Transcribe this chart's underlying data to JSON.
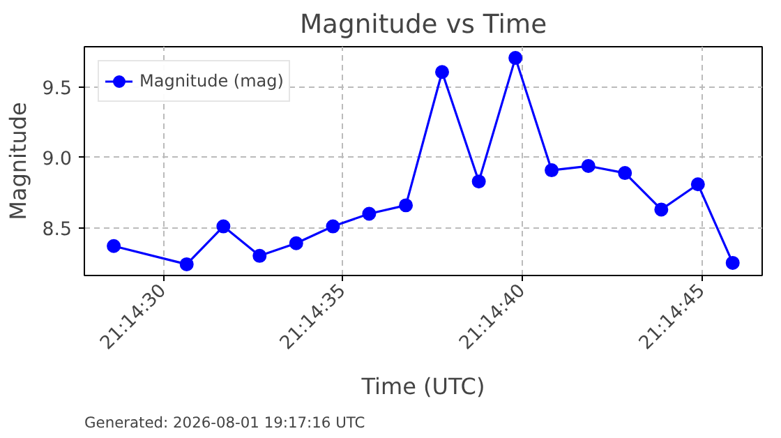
{
  "chart_data": {
    "type": "line",
    "title": "Magnitude vs Time",
    "xlabel": "Time (UTC)",
    "ylabel": "Magnitude",
    "x": [
      21.241283,
      21.241847,
      21.242131,
      21.242411,
      21.242694,
      21.242978,
      21.243258,
      21.243542,
      21.243822,
      21.244106,
      21.244389,
      21.244669,
      21.244953,
      21.245236,
      21.245517,
      21.2458,
      21.246069
    ],
    "series": [
      {
        "name": "Magnitude (mag)",
        "color": "#0000ff",
        "values": [
          8.37,
          8.24,
          8.51,
          8.3,
          8.39,
          8.51,
          8.6,
          8.66,
          9.61,
          8.83,
          9.71,
          8.91,
          8.94,
          8.89,
          8.63,
          8.81,
          8.25
        ]
      }
    ],
    "xlim": [
      21.241056,
      21.246297
    ],
    "xticks": [
      {
        "value": 21.241667,
        "label": "21:14:30"
      },
      {
        "value": 21.243056,
        "label": "21:14:35"
      },
      {
        "value": 21.244444,
        "label": "21:14:40"
      },
      {
        "value": 21.245833,
        "label": "21:14:45"
      }
    ],
    "ylim": [
      8.16,
      9.79
    ],
    "yticks": [
      {
        "value": 8.5,
        "label": "8.5"
      },
      {
        "value": 9.0,
        "label": "9.0"
      },
      {
        "value": 9.5,
        "label": "9.5"
      }
    ],
    "grid": true,
    "legend": "top left",
    "marker": "circle",
    "line_style": "solid",
    "annotations": [
      "Generated: 2026-08-01 19:17:16 UTC"
    ]
  }
}
